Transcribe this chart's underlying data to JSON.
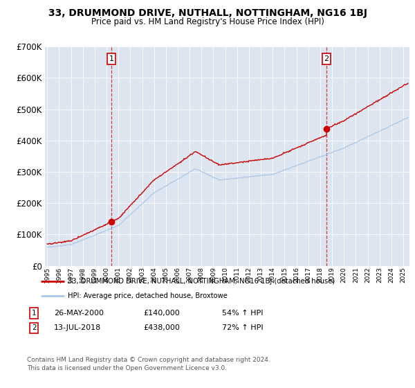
{
  "title": "33, DRUMMOND DRIVE, NUTHALL, NOTTINGHAM, NG16 1BJ",
  "subtitle": "Price paid vs. HM Land Registry's House Price Index (HPI)",
  "sale1_x": 2000.4,
  "sale1_price": 140000,
  "sale2_x": 2018.53,
  "sale2_price": 438000,
  "legend_line1": "33, DRUMMOND DRIVE, NUTHALL, NOTTINGHAM, NG16 1BJ (detached house)",
  "legend_line2": "HPI: Average price, detached house, Broxtowe",
  "footer1": "Contains HM Land Registry data © Crown copyright and database right 2024.",
  "footer2": "This data is licensed under the Open Government Licence v3.0.",
  "ylim": [
    0,
    700000
  ],
  "xlim_start": 1994.8,
  "xlim_end": 2025.5,
  "bg_color": "#dde6f0",
  "grid_color": "#ffffff",
  "red_color": "#cc0000",
  "blue_color": "#aac8e8"
}
